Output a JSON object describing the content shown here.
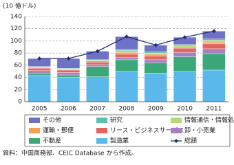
{
  "chart_data": {
    "type": "bar",
    "stacked": true,
    "y_label": "(10 億ドル)",
    "note": "資料：中国商務部、CEIC Database から作成。",
    "categories": [
      "2005",
      "2006",
      "2007",
      "2008",
      "2009",
      "2010",
      "2011"
    ],
    "ylim": [
      0,
      140
    ],
    "yticks": [
      0,
      20,
      40,
      60,
      80,
      100,
      120,
      140
    ],
    "grid": true,
    "series": [
      {
        "name": "その他",
        "color": "#6f72c4",
        "values": [
          13,
          16,
          14,
          21,
          11,
          12,
          13
        ]
      },
      {
        "name": "研究",
        "color": "#5cc0b0",
        "values": [
          1,
          1,
          1,
          2,
          2,
          2,
          2
        ]
      },
      {
        "name": "情報通信・情報処理",
        "color": "#b8d878",
        "values": [
          1,
          1,
          1,
          3,
          2,
          2,
          3
        ]
      },
      {
        "name": "運輸・郵便",
        "color": "#f2a052",
        "values": [
          1,
          1,
          2,
          3,
          3,
          2,
          3
        ]
      },
      {
        "name": "リース・ビジネスサービス",
        "color": "#e2655e",
        "values": [
          4,
          4,
          4,
          5,
          6,
          7,
          8
        ]
      },
      {
        "name": "卸・小売業",
        "color": "#a880c2",
        "values": [
          4,
          4,
          3,
          4,
          5,
          7,
          8
        ]
      },
      {
        "name": "不動産",
        "color": "#3ca87a",
        "values": [
          4,
          4,
          17,
          19,
          17,
          24,
          27
        ]
      },
      {
        "name": "製造業",
        "color": "#5bb8ea",
        "values": [
          43,
          40,
          41,
          50,
          47,
          50,
          52
        ]
      },
      {
        "name": "総額",
        "type": "line",
        "color": "#1f2f7a",
        "values": [
          71,
          71,
          83,
          107,
          93,
          106,
          116
        ]
      }
    ]
  }
}
